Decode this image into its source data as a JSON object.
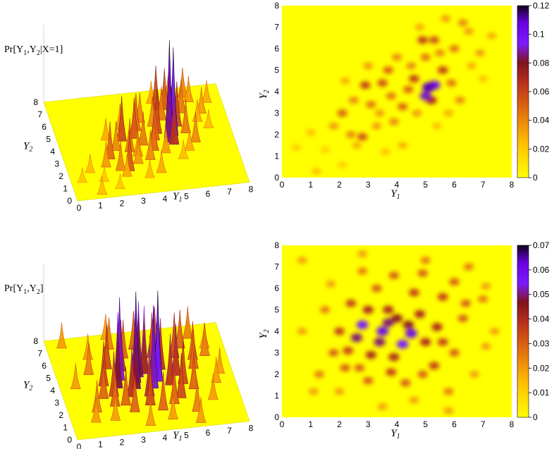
{
  "colors": {
    "background": "#ffff00",
    "low": "#ffff00",
    "mid1": "#ff8c00",
    "mid2": "#c0391b",
    "mid3": "#7a0f1f",
    "high": "#8a00ff",
    "top": "#1a0026"
  },
  "chart_data": [
    {
      "type": "surface3d",
      "title_html": "Pr[Y1,Y2|X=1]",
      "title_parts": {
        "a": "Pr[Y",
        "s1": "1",
        "b": ",Y",
        "s2": "2",
        "c": "|X=1]"
      },
      "xlabel": "Y1",
      "ylabel": "Y2",
      "x_ticks": [
        "0",
        "1",
        "2",
        "3",
        "4",
        "5",
        "6",
        "7",
        "8"
      ],
      "y_ticks": [
        "0",
        "1",
        "2",
        "3",
        "4",
        "5",
        "6",
        "7",
        "8"
      ]
    },
    {
      "type": "heatmap",
      "xlabel": "Y1",
      "ylabel": "Y2",
      "xlim": [
        0,
        8
      ],
      "ylim": [
        0,
        8
      ],
      "x_ticks": [
        "0",
        "1",
        "2",
        "3",
        "4",
        "5",
        "6",
        "7",
        "8"
      ],
      "y_ticks": [
        "0",
        "1",
        "2",
        "3",
        "4",
        "5",
        "6",
        "7",
        "8"
      ],
      "colorbar": {
        "min": 0,
        "max": 0.12,
        "ticks": [
          "0",
          "0.02",
          "0.04",
          "0.06",
          "0.08",
          "0.1",
          "0.12"
        ],
        "tick_values": [
          0,
          0.02,
          0.04,
          0.06,
          0.08,
          0.1,
          0.12
        ]
      },
      "peaks": [
        {
          "x": 5.1,
          "y": 4.2,
          "v": 0.11
        },
        {
          "x": 5.3,
          "y": 4.3,
          "v": 0.1
        },
        {
          "x": 5.0,
          "y": 3.8,
          "v": 0.09
        },
        {
          "x": 5.2,
          "y": 3.6,
          "v": 0.07
        },
        {
          "x": 2.9,
          "y": 4.3,
          "v": 0.06
        },
        {
          "x": 3.5,
          "y": 4.4,
          "v": 0.055
        },
        {
          "x": 4.6,
          "y": 4.6,
          "v": 0.06
        },
        {
          "x": 5.6,
          "y": 5.0,
          "v": 0.06
        },
        {
          "x": 4.9,
          "y": 6.4,
          "v": 0.06
        },
        {
          "x": 5.3,
          "y": 6.4,
          "v": 0.055
        },
        {
          "x": 3.7,
          "y": 5.0,
          "v": 0.05
        },
        {
          "x": 2.8,
          "y": 1.9,
          "v": 0.055
        },
        {
          "x": 2.1,
          "y": 3.0,
          "v": 0.05
        },
        {
          "x": 3.1,
          "y": 3.4,
          "v": 0.045
        },
        {
          "x": 3.9,
          "y": 2.6,
          "v": 0.04
        },
        {
          "x": 4.2,
          "y": 3.3,
          "v": 0.05
        },
        {
          "x": 4.4,
          "y": 4.1,
          "v": 0.05
        },
        {
          "x": 5.9,
          "y": 4.4,
          "v": 0.045
        },
        {
          "x": 6.2,
          "y": 3.6,
          "v": 0.04
        },
        {
          "x": 6.0,
          "y": 6.0,
          "v": 0.045
        },
        {
          "x": 6.3,
          "y": 7.2,
          "v": 0.04
        },
        {
          "x": 5.7,
          "y": 7.4,
          "v": 0.035
        },
        {
          "x": 6.9,
          "y": 5.8,
          "v": 0.035
        },
        {
          "x": 7.3,
          "y": 6.6,
          "v": 0.03
        },
        {
          "x": 6.6,
          "y": 5.2,
          "v": 0.03
        },
        {
          "x": 1.8,
          "y": 2.4,
          "v": 0.035
        },
        {
          "x": 2.4,
          "y": 2.0,
          "v": 0.04
        },
        {
          "x": 1.0,
          "y": 2.1,
          "v": 0.025
        },
        {
          "x": 0.5,
          "y": 1.4,
          "v": 0.02
        },
        {
          "x": 1.2,
          "y": 0.3,
          "v": 0.025
        },
        {
          "x": 2.1,
          "y": 0.6,
          "v": 0.02
        },
        {
          "x": 1.5,
          "y": 1.3,
          "v": 0.02
        },
        {
          "x": 2.6,
          "y": 1.5,
          "v": 0.03
        },
        {
          "x": 3.3,
          "y": 2.4,
          "v": 0.035
        },
        {
          "x": 4.0,
          "y": 5.6,
          "v": 0.04
        },
        {
          "x": 4.5,
          "y": 5.2,
          "v": 0.04
        },
        {
          "x": 5.0,
          "y": 5.6,
          "v": 0.045
        },
        {
          "x": 5.5,
          "y": 5.8,
          "v": 0.04
        },
        {
          "x": 3.0,
          "y": 5.2,
          "v": 0.035
        },
        {
          "x": 3.4,
          "y": 3.0,
          "v": 0.035
        },
        {
          "x": 4.7,
          "y": 3.0,
          "v": 0.035
        },
        {
          "x": 5.8,
          "y": 3.0,
          "v": 0.03
        },
        {
          "x": 2.5,
          "y": 3.6,
          "v": 0.04
        },
        {
          "x": 3.8,
          "y": 3.8,
          "v": 0.045
        },
        {
          "x": 6.5,
          "y": 6.8,
          "v": 0.035
        },
        {
          "x": 7.0,
          "y": 4.6,
          "v": 0.025
        },
        {
          "x": 4.2,
          "y": 1.5,
          "v": 0.03
        },
        {
          "x": 3.6,
          "y": 1.2,
          "v": 0.025
        },
        {
          "x": 5.4,
          "y": 2.4,
          "v": 0.025
        },
        {
          "x": 2.2,
          "y": 4.5,
          "v": 0.03
        },
        {
          "x": 4.8,
          "y": 7.0,
          "v": 0.03
        }
      ]
    },
    {
      "type": "surface3d",
      "title_parts": {
        "a": "Pr[Y",
        "s1": "1",
        "b": ",Y",
        "s2": "2",
        "c": "]"
      },
      "xlabel": "Y1",
      "ylabel": "Y2",
      "x_ticks": [
        "0",
        "1",
        "2",
        "3",
        "4",
        "5",
        "6",
        "7",
        "8"
      ],
      "y_ticks": [
        "0",
        "1",
        "2",
        "3",
        "4",
        "5",
        "6",
        "7",
        "8"
      ]
    },
    {
      "type": "heatmap",
      "xlabel": "Y1",
      "ylabel": "Y2",
      "xlim": [
        0,
        8
      ],
      "ylim": [
        0,
        8
      ],
      "x_ticks": [
        "0",
        "1",
        "2",
        "3",
        "4",
        "5",
        "6",
        "7",
        "8"
      ],
      "y_ticks": [
        "0",
        "1",
        "2",
        "3",
        "4",
        "5",
        "6",
        "7",
        "8"
      ],
      "colorbar": {
        "min": 0,
        "max": 0.07,
        "ticks": [
          "0",
          "0.01",
          "0.02",
          "0.03",
          "0.04",
          "0.05",
          "0.06",
          "0.07"
        ],
        "tick_values": [
          0,
          0.01,
          0.02,
          0.03,
          0.04,
          0.05,
          0.06,
          0.07
        ]
      },
      "peaks": [
        {
          "x": 3.5,
          "y": 4.0,
          "v": 0.06
        },
        {
          "x": 2.8,
          "y": 4.3,
          "v": 0.055
        },
        {
          "x": 4.5,
          "y": 3.9,
          "v": 0.06
        },
        {
          "x": 4.2,
          "y": 3.4,
          "v": 0.055
        },
        {
          "x": 3.4,
          "y": 3.5,
          "v": 0.05
        },
        {
          "x": 2.6,
          "y": 3.7,
          "v": 0.05
        },
        {
          "x": 4.0,
          "y": 4.6,
          "v": 0.045
        },
        {
          "x": 3.7,
          "y": 5.0,
          "v": 0.04
        },
        {
          "x": 3.0,
          "y": 5.0,
          "v": 0.04
        },
        {
          "x": 4.8,
          "y": 4.8,
          "v": 0.04
        },
        {
          "x": 5.0,
          "y": 3.5,
          "v": 0.04
        },
        {
          "x": 3.9,
          "y": 2.8,
          "v": 0.04
        },
        {
          "x": 3.1,
          "y": 2.9,
          "v": 0.04
        },
        {
          "x": 2.4,
          "y": 5.3,
          "v": 0.035
        },
        {
          "x": 5.4,
          "y": 4.2,
          "v": 0.04
        },
        {
          "x": 5.6,
          "y": 5.6,
          "v": 0.035
        },
        {
          "x": 4.6,
          "y": 5.8,
          "v": 0.035
        },
        {
          "x": 3.3,
          "y": 6.0,
          "v": 0.03
        },
        {
          "x": 2.0,
          "y": 4.0,
          "v": 0.035
        },
        {
          "x": 1.8,
          "y": 3.0,
          "v": 0.03
        },
        {
          "x": 2.2,
          "y": 2.3,
          "v": 0.03
        },
        {
          "x": 3.0,
          "y": 1.7,
          "v": 0.03
        },
        {
          "x": 4.3,
          "y": 1.6,
          "v": 0.03
        },
        {
          "x": 5.3,
          "y": 2.4,
          "v": 0.035
        },
        {
          "x": 6.0,
          "y": 3.0,
          "v": 0.03
        },
        {
          "x": 6.3,
          "y": 4.6,
          "v": 0.03
        },
        {
          "x": 6.0,
          "y": 6.3,
          "v": 0.03
        },
        {
          "x": 4.9,
          "y": 6.7,
          "v": 0.03
        },
        {
          "x": 3.9,
          "y": 6.6,
          "v": 0.03
        },
        {
          "x": 2.8,
          "y": 6.8,
          "v": 0.025
        },
        {
          "x": 1.5,
          "y": 5.0,
          "v": 0.025
        },
        {
          "x": 1.3,
          "y": 2.0,
          "v": 0.025
        },
        {
          "x": 0.7,
          "y": 7.3,
          "v": 0.02
        },
        {
          "x": 0.7,
          "y": 4.0,
          "v": 0.02
        },
        {
          "x": 2.8,
          "y": 7.6,
          "v": 0.02
        },
        {
          "x": 5.0,
          "y": 7.3,
          "v": 0.025
        },
        {
          "x": 6.5,
          "y": 7.0,
          "v": 0.025
        },
        {
          "x": 7.0,
          "y": 5.5,
          "v": 0.025
        },
        {
          "x": 7.4,
          "y": 4.0,
          "v": 0.02
        },
        {
          "x": 7.1,
          "y": 3.3,
          "v": 0.02
        },
        {
          "x": 6.7,
          "y": 2.0,
          "v": 0.02
        },
        {
          "x": 5.8,
          "y": 1.2,
          "v": 0.025
        },
        {
          "x": 4.6,
          "y": 0.8,
          "v": 0.02
        },
        {
          "x": 3.5,
          "y": 0.5,
          "v": 0.02
        },
        {
          "x": 5.8,
          "y": 0.3,
          "v": 0.02
        },
        {
          "x": 1.1,
          "y": 1.2,
          "v": 0.02
        },
        {
          "x": 4.9,
          "y": 2.0,
          "v": 0.03
        },
        {
          "x": 2.3,
          "y": 3.1,
          "v": 0.035
        },
        {
          "x": 5.6,
          "y": 3.5,
          "v": 0.035
        },
        {
          "x": 3.7,
          "y": 4.4,
          "v": 0.05
        },
        {
          "x": 4.4,
          "y": 4.3,
          "v": 0.045
        },
        {
          "x": 2.7,
          "y": 2.3,
          "v": 0.03
        },
        {
          "x": 6.4,
          "y": 5.3,
          "v": 0.03
        },
        {
          "x": 7.1,
          "y": 6.1,
          "v": 0.02
        },
        {
          "x": 1.7,
          "y": 6.2,
          "v": 0.02
        },
        {
          "x": 2.0,
          "y": 1.2,
          "v": 0.02
        },
        {
          "x": 3.8,
          "y": 2.1,
          "v": 0.035
        }
      ]
    }
  ]
}
